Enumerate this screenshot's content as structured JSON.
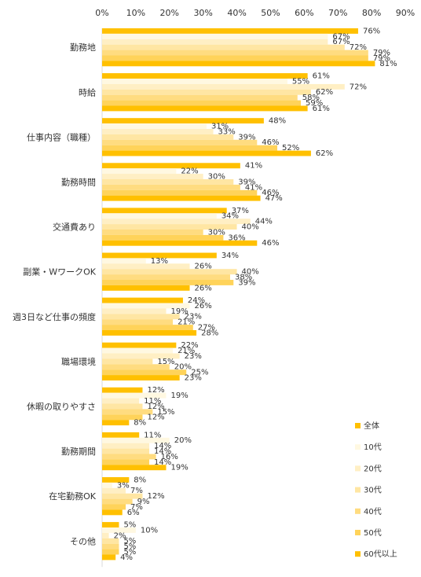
{
  "chart_data": {
    "type": "bar",
    "orientation": "horizontal",
    "title": "",
    "xlabel": "",
    "ylabel": "",
    "xlim": [
      0,
      90
    ],
    "x_ticks": [
      "0%",
      "10%",
      "20%",
      "30%",
      "40%",
      "50%",
      "60%",
      "70%",
      "80%",
      "90%"
    ],
    "value_suffix": "%",
    "grid": false,
    "legend_position": "right",
    "categories": [
      "勤務地",
      "時給",
      "仕事内容（職種）",
      "勤務時間",
      "交通費あり",
      "副業・WワークOK",
      "週3日など仕事の頻度",
      "職場環境",
      "休暇の取りやすさ",
      "勤務期間",
      "在宅勤務OK",
      "その他"
    ],
    "series": [
      {
        "name": "全体",
        "color": "#FFC000",
        "values": [
          76,
          61,
          48,
          41,
          37,
          34,
          24,
          22,
          12,
          11,
          8,
          5
        ]
      },
      {
        "name": "10代",
        "color": "#FFF8E1",
        "values": [
          67,
          55,
          31,
          22,
          34,
          13,
          26,
          21,
          19,
          20,
          3,
          10
        ]
      },
      {
        "name": "20代",
        "color": "#FFEFC4",
        "values": [
          67,
          72,
          33,
          30,
          44,
          26,
          19,
          23,
          11,
          14,
          7,
          2
        ]
      },
      {
        "name": "30代",
        "color": "#FFE6A3",
        "values": [
          72,
          62,
          39,
          39,
          40,
          40,
          23,
          15,
          12,
          14,
          12,
          5
        ]
      },
      {
        "name": "40代",
        "color": "#FFDC80",
        "values": [
          79,
          58,
          46,
          41,
          30,
          38,
          21,
          20,
          15,
          16,
          9,
          5
        ]
      },
      {
        "name": "50代",
        "color": "#FFD35A",
        "values": [
          79,
          59,
          52,
          46,
          36,
          39,
          27,
          25,
          12,
          14,
          7,
          5
        ]
      },
      {
        "name": "60代以上",
        "color": "#FFC000",
        "values": [
          81,
          61,
          62,
          47,
          46,
          26,
          28,
          23,
          8,
          19,
          6,
          4
        ]
      }
    ]
  }
}
